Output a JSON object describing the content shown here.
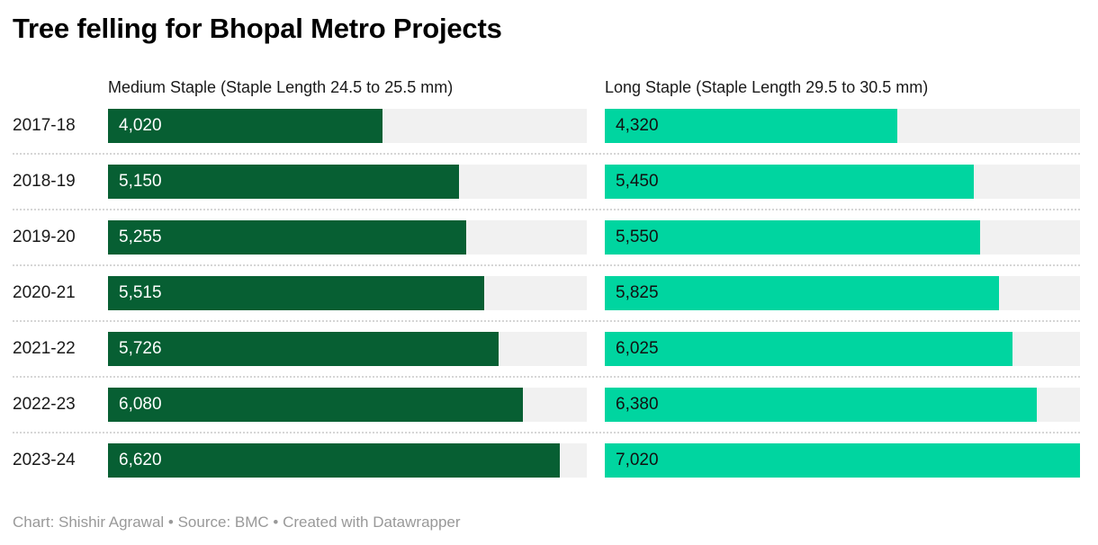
{
  "title": "Tree felling for Bhopal Metro Projects",
  "footer": {
    "text": "Chart: Shishir Agrawal • Source: BMC • Created with Datawrapper"
  },
  "colors": {
    "medium_staple_bar": "#075f33",
    "long_staple_bar": "#00d5a0",
    "bar_track": "#f1f1f1",
    "separator": "#d6d6d6",
    "title_text": "#000000",
    "label_text": "#1a1a1a",
    "footer_text": "#999999",
    "value_on_dark": "#ffffff",
    "value_on_light": "#111111"
  },
  "chart_data": {
    "type": "bar",
    "orientation": "horizontal",
    "title": "Tree felling for Bhopal Metro Projects",
    "xlabel": "",
    "ylabel": "",
    "xlim": [
      0,
      7020
    ],
    "grid": false,
    "legend_position": "column-headers",
    "categories": [
      "2017-18",
      "2018-19",
      "2019-20",
      "2020-21",
      "2021-22",
      "2022-23",
      "2023-24"
    ],
    "series": [
      {
        "name": "Medium Staple (Staple Length 24.5 to 25.5 mm)",
        "color": "#075f33",
        "values": [
          4020,
          5150,
          5255,
          5515,
          5726,
          6080,
          6620
        ],
        "labels": [
          "4,020",
          "5,150",
          "5,255",
          "5,515",
          "5,726",
          "6,080",
          "6,620"
        ]
      },
      {
        "name": "Long Staple (Staple Length 29.5 to 30.5 mm)",
        "color": "#00d5a0",
        "values": [
          4320,
          5450,
          5550,
          5825,
          6025,
          6380,
          7020
        ],
        "labels": [
          "4,320",
          "5,450",
          "5,550",
          "5,825",
          "6,025",
          "6,380",
          "7,020"
        ]
      }
    ]
  }
}
